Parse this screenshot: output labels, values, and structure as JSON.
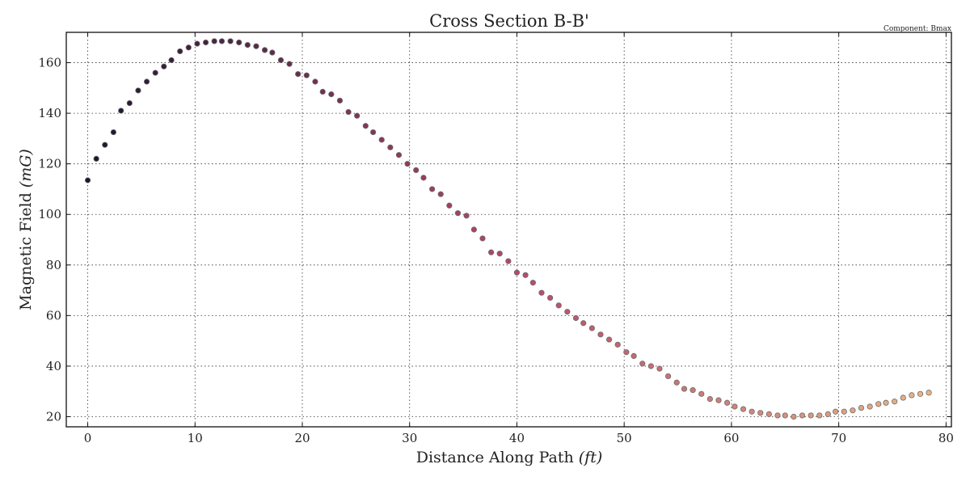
{
  "chart_data": {
    "type": "scatter",
    "title": "Cross Section B-B'",
    "component_note": "Component: Bmax",
    "xlabel_text": "Distance Along Path ",
    "xlabel_math": "(ft)",
    "ylabel_text": "Magnetic Field ",
    "ylabel_math": "(mG)",
    "xlim": [
      -2,
      80.5
    ],
    "ylim": [
      16,
      172
    ],
    "xticks": [
      0,
      10,
      20,
      30,
      40,
      50,
      60,
      70,
      80
    ],
    "yticks": [
      20,
      40,
      60,
      80,
      100,
      120,
      140,
      160
    ],
    "grid": true,
    "colormap_start": "#1a1530",
    "colormap_mid": "#b5476a",
    "colormap_end": "#e7b787",
    "series": [
      {
        "x": [
          0,
          0.8,
          1.6,
          2.4,
          3.1,
          3.9,
          4.7,
          5.5,
          6.3,
          7.1,
          7.8,
          8.6,
          9.4,
          10.2,
          11,
          11.8,
          12.5,
          13.3,
          14.1,
          14.9,
          15.7,
          16.5,
          17.2,
          18,
          18.8,
          19.6,
          20.4,
          21.2,
          21.9,
          22.7,
          23.5,
          24.3,
          25.1,
          25.9,
          26.6,
          27.4,
          28.2,
          29,
          29.8,
          30.6,
          31.3,
          32.1,
          32.9,
          33.7,
          34.5,
          35.3,
          36,
          36.8,
          37.6,
          38.4,
          39.2,
          40,
          40.8,
          41.5,
          42.3,
          43.1,
          43.9,
          44.7,
          45.5,
          46.2,
          47,
          47.8,
          48.6,
          49.4,
          50.2,
          50.9,
          51.7,
          52.5,
          53.3,
          54.1,
          54.9,
          55.6,
          56.4,
          57.2,
          58,
          58.8,
          59.6,
          60.3,
          61.1,
          61.9,
          62.7,
          63.5,
          64.3,
          65,
          65.8,
          66.6,
          67.4,
          68.2,
          69,
          69.7,
          70.5,
          71.3,
          72.1,
          72.9,
          73.7,
          74.4,
          75.2,
          76,
          76.8,
          77.6,
          78.4
        ],
        "y": [
          113.5,
          122,
          127.5,
          132.5,
          141,
          144,
          149,
          152.5,
          156,
          158.5,
          161,
          164.5,
          166,
          167.5,
          168,
          168.5,
          168.5,
          168.5,
          168,
          167,
          166.5,
          165,
          164,
          161,
          159.5,
          155.5,
          155,
          152.5,
          148.5,
          147.5,
          145,
          140.5,
          139,
          135,
          132.5,
          129.5,
          126.5,
          123.5,
          120,
          117.5,
          114.5,
          110,
          108,
          103.5,
          100.5,
          99.5,
          94,
          90.5,
          85,
          84.5,
          81.5,
          77,
          76,
          73,
          69,
          67,
          64,
          61.5,
          59,
          57,
          55,
          52.5,
          50.5,
          48.5,
          45.5,
          44,
          41,
          40,
          39,
          36,
          33.5,
          31,
          30.5,
          29,
          27,
          26.5,
          25.5,
          24,
          23,
          22,
          21.5,
          21,
          20.5,
          20.5,
          20,
          20.5,
          20.5,
          20.5,
          21,
          22,
          22,
          22.5,
          23.5,
          24,
          25,
          25.5,
          26,
          27.5,
          28.5,
          29,
          29.5
        ]
      }
    ]
  }
}
